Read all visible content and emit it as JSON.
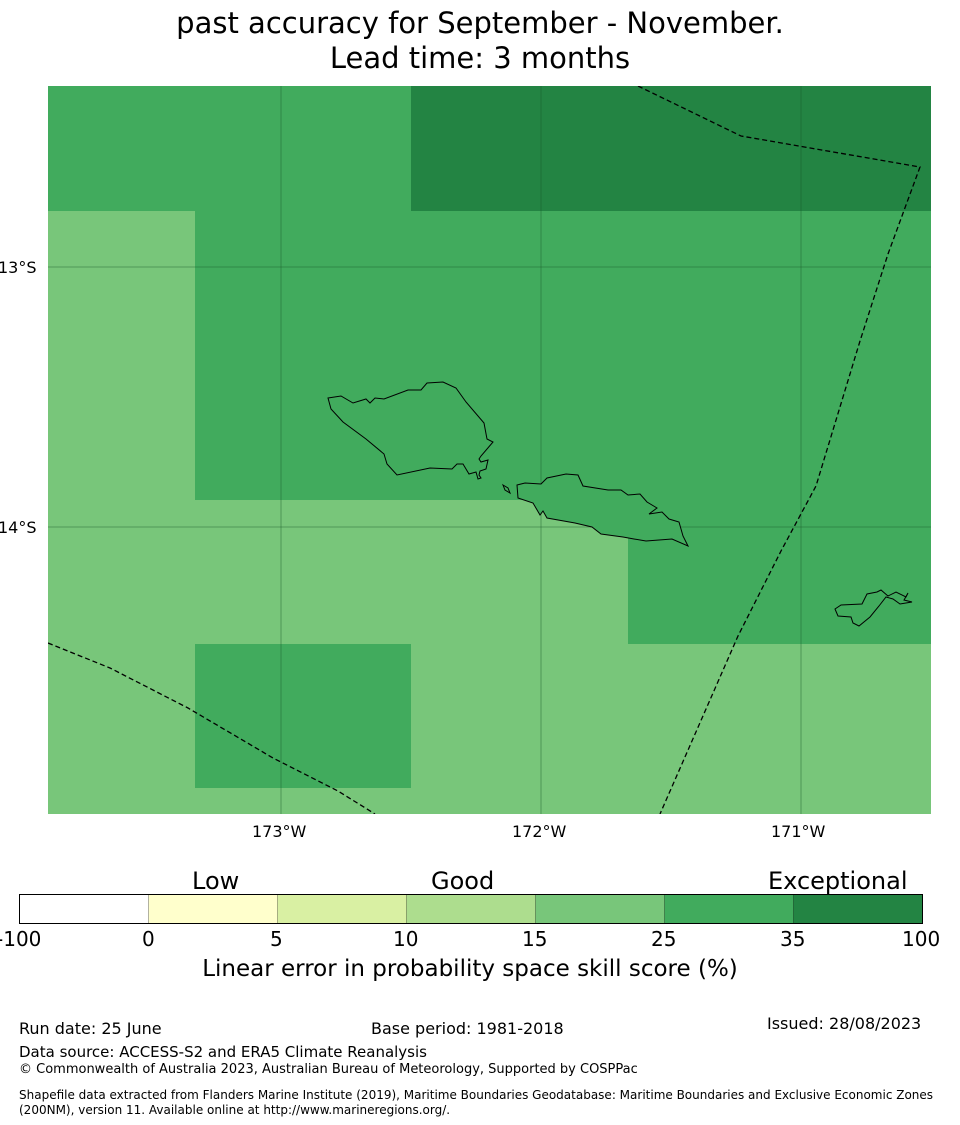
{
  "title": {
    "line1": "past accuracy for September - November.",
    "line2": "Lead time: 3 months"
  },
  "map": {
    "lat_labels": [
      "13°S",
      "14°S"
    ],
    "lon_labels": [
      "173°W",
      "172°W",
      "171°W"
    ],
    "colors": {
      "skill_15_25": "#78c67a",
      "skill_25_35": "#41ab5d",
      "skill_35_100": "#238443",
      "coastline": "#000000",
      "boundary": "#000000"
    }
  },
  "legend": {
    "categories": [
      "Low",
      "Good",
      "Exceptional"
    ],
    "ticks": [
      "-100",
      "0",
      "5",
      "10",
      "15",
      "25",
      "35",
      "100"
    ],
    "colors": [
      "#ffffff",
      "#ffffcc",
      "#d9f0a3",
      "#addd8e",
      "#78c67a",
      "#41ab5d",
      "#238443"
    ],
    "label": "Linear error in probability space skill score (%)"
  },
  "footer": {
    "run_date": "Run date: 25 June",
    "base_period": "Base period: 1981-2018",
    "issued": "Issued: 28/08/2023",
    "data_source": "Data source: ACCESS-S2 and ERA5 Climate Reanalysis",
    "copyright": "© Commonwealth of Australia 2023, Australian Bureau of Meteorology, Supported by COSPPac",
    "shapefile": "Shapefile data extracted from Flanders Marine Institute (2019), Maritime Boundaries Geodatabase: Maritime Boundaries and Exclusive Economic Zones (200NM), version 11. Available online at http://www.marineregions.org/."
  }
}
